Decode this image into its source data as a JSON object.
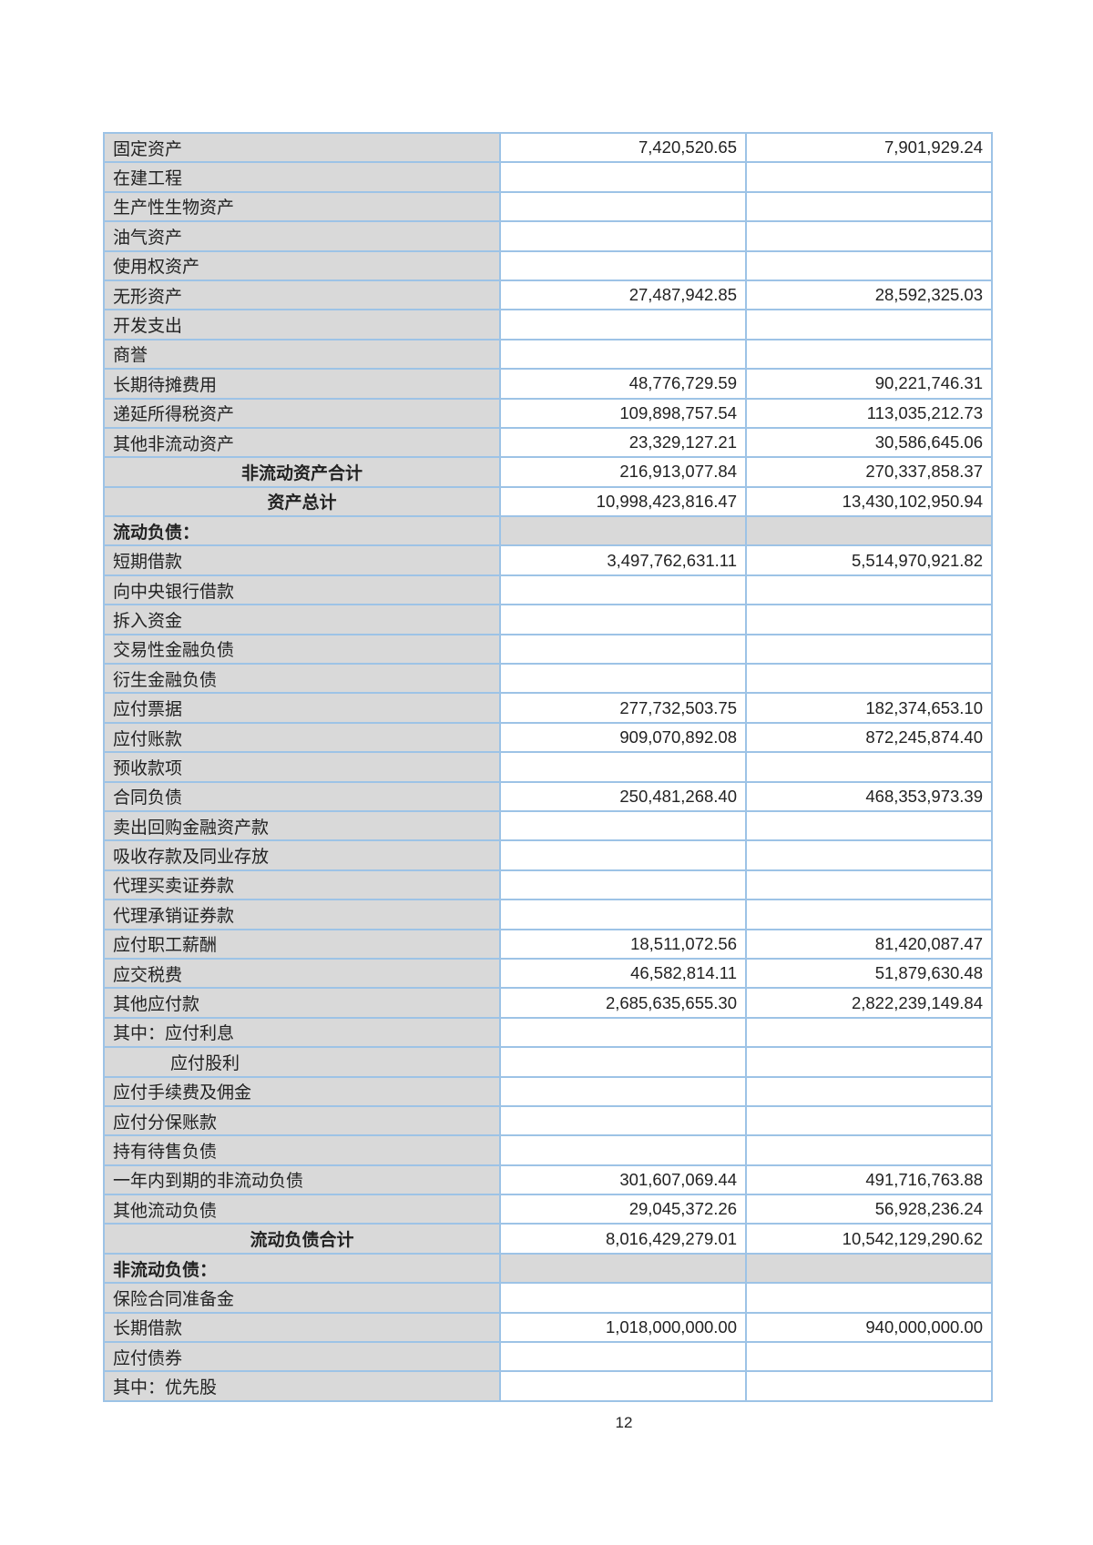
{
  "rows": [
    {
      "label": "固定资产",
      "v1": "7,420,520.65",
      "v2": "7,901,929.24"
    },
    {
      "label": "在建工程",
      "v1": "",
      "v2": ""
    },
    {
      "label": "生产性生物资产",
      "v1": "",
      "v2": ""
    },
    {
      "label": "油气资产",
      "v1": "",
      "v2": ""
    },
    {
      "label": "使用权资产",
      "v1": "",
      "v2": ""
    },
    {
      "label": "无形资产",
      "v1": "27,487,942.85",
      "v2": "28,592,325.03"
    },
    {
      "label": "开发支出",
      "v1": "",
      "v2": ""
    },
    {
      "label": "商誉",
      "v1": "",
      "v2": ""
    },
    {
      "label": "长期待摊费用",
      "v1": "48,776,729.59",
      "v2": "90,221,746.31"
    },
    {
      "label": "递延所得税资产",
      "v1": "109,898,757.54",
      "v2": "113,035,212.73"
    },
    {
      "label": "其他非流动资产",
      "v1": "23,329,127.21",
      "v2": "30,586,645.06"
    },
    {
      "label": "非流动资产合计",
      "v1": "216,913,077.84",
      "v2": "270,337,858.37",
      "type": "total"
    },
    {
      "label": "资产总计",
      "v1": "10,998,423,816.47",
      "v2": "13,430,102,950.94",
      "type": "total"
    },
    {
      "label": "流动负债：",
      "v1": "",
      "v2": "",
      "type": "section"
    },
    {
      "label": "短期借款",
      "v1": "3,497,762,631.11",
      "v2": "5,514,970,921.82"
    },
    {
      "label": "向中央银行借款",
      "v1": "",
      "v2": ""
    },
    {
      "label": "拆入资金",
      "v1": "",
      "v2": ""
    },
    {
      "label": "交易性金融负债",
      "v1": "",
      "v2": ""
    },
    {
      "label": "衍生金融负债",
      "v1": "",
      "v2": ""
    },
    {
      "label": "应付票据",
      "v1": "277,732,503.75",
      "v2": "182,374,653.10"
    },
    {
      "label": "应付账款",
      "v1": "909,070,892.08",
      "v2": "872,245,874.40"
    },
    {
      "label": "预收款项",
      "v1": "",
      "v2": ""
    },
    {
      "label": "合同负债",
      "v1": "250,481,268.40",
      "v2": "468,353,973.39"
    },
    {
      "label": "卖出回购金融资产款",
      "v1": "",
      "v2": ""
    },
    {
      "label": "吸收存款及同业存放",
      "v1": "",
      "v2": ""
    },
    {
      "label": "代理买卖证券款",
      "v1": "",
      "v2": ""
    },
    {
      "label": "代理承销证券款",
      "v1": "",
      "v2": ""
    },
    {
      "label": "应付职工薪酬",
      "v1": "18,511,072.56",
      "v2": "81,420,087.47"
    },
    {
      "label": "应交税费",
      "v1": "46,582,814.11",
      "v2": "51,879,630.48"
    },
    {
      "label": "其他应付款",
      "v1": "2,685,635,655.30",
      "v2": "2,822,239,149.84"
    },
    {
      "label": "其中：应付利息",
      "v1": "",
      "v2": ""
    },
    {
      "label": "应付股利",
      "v1": "",
      "v2": "",
      "type": "indent"
    },
    {
      "label": "应付手续费及佣金",
      "v1": "",
      "v2": ""
    },
    {
      "label": "应付分保账款",
      "v1": "",
      "v2": ""
    },
    {
      "label": "持有待售负债",
      "v1": "",
      "v2": ""
    },
    {
      "label": "一年内到期的非流动负债",
      "v1": "301,607,069.44",
      "v2": "491,716,763.88"
    },
    {
      "label": "其他流动负债",
      "v1": "29,045,372.26",
      "v2": "56,928,236.24"
    },
    {
      "label": "流动负债合计",
      "v1": "8,016,429,279.01",
      "v2": "10,542,129,290.62",
      "type": "total"
    },
    {
      "label": "非流动负债：",
      "v1": "",
      "v2": "",
      "type": "section"
    },
    {
      "label": "保险合同准备金",
      "v1": "",
      "v2": ""
    },
    {
      "label": "长期借款",
      "v1": "1,018,000,000.00",
      "v2": "940,000,000.00"
    },
    {
      "label": "应付债券",
      "v1": "",
      "v2": ""
    },
    {
      "label": "其中：优先股",
      "v1": "",
      "v2": ""
    }
  ],
  "page_number": "12"
}
